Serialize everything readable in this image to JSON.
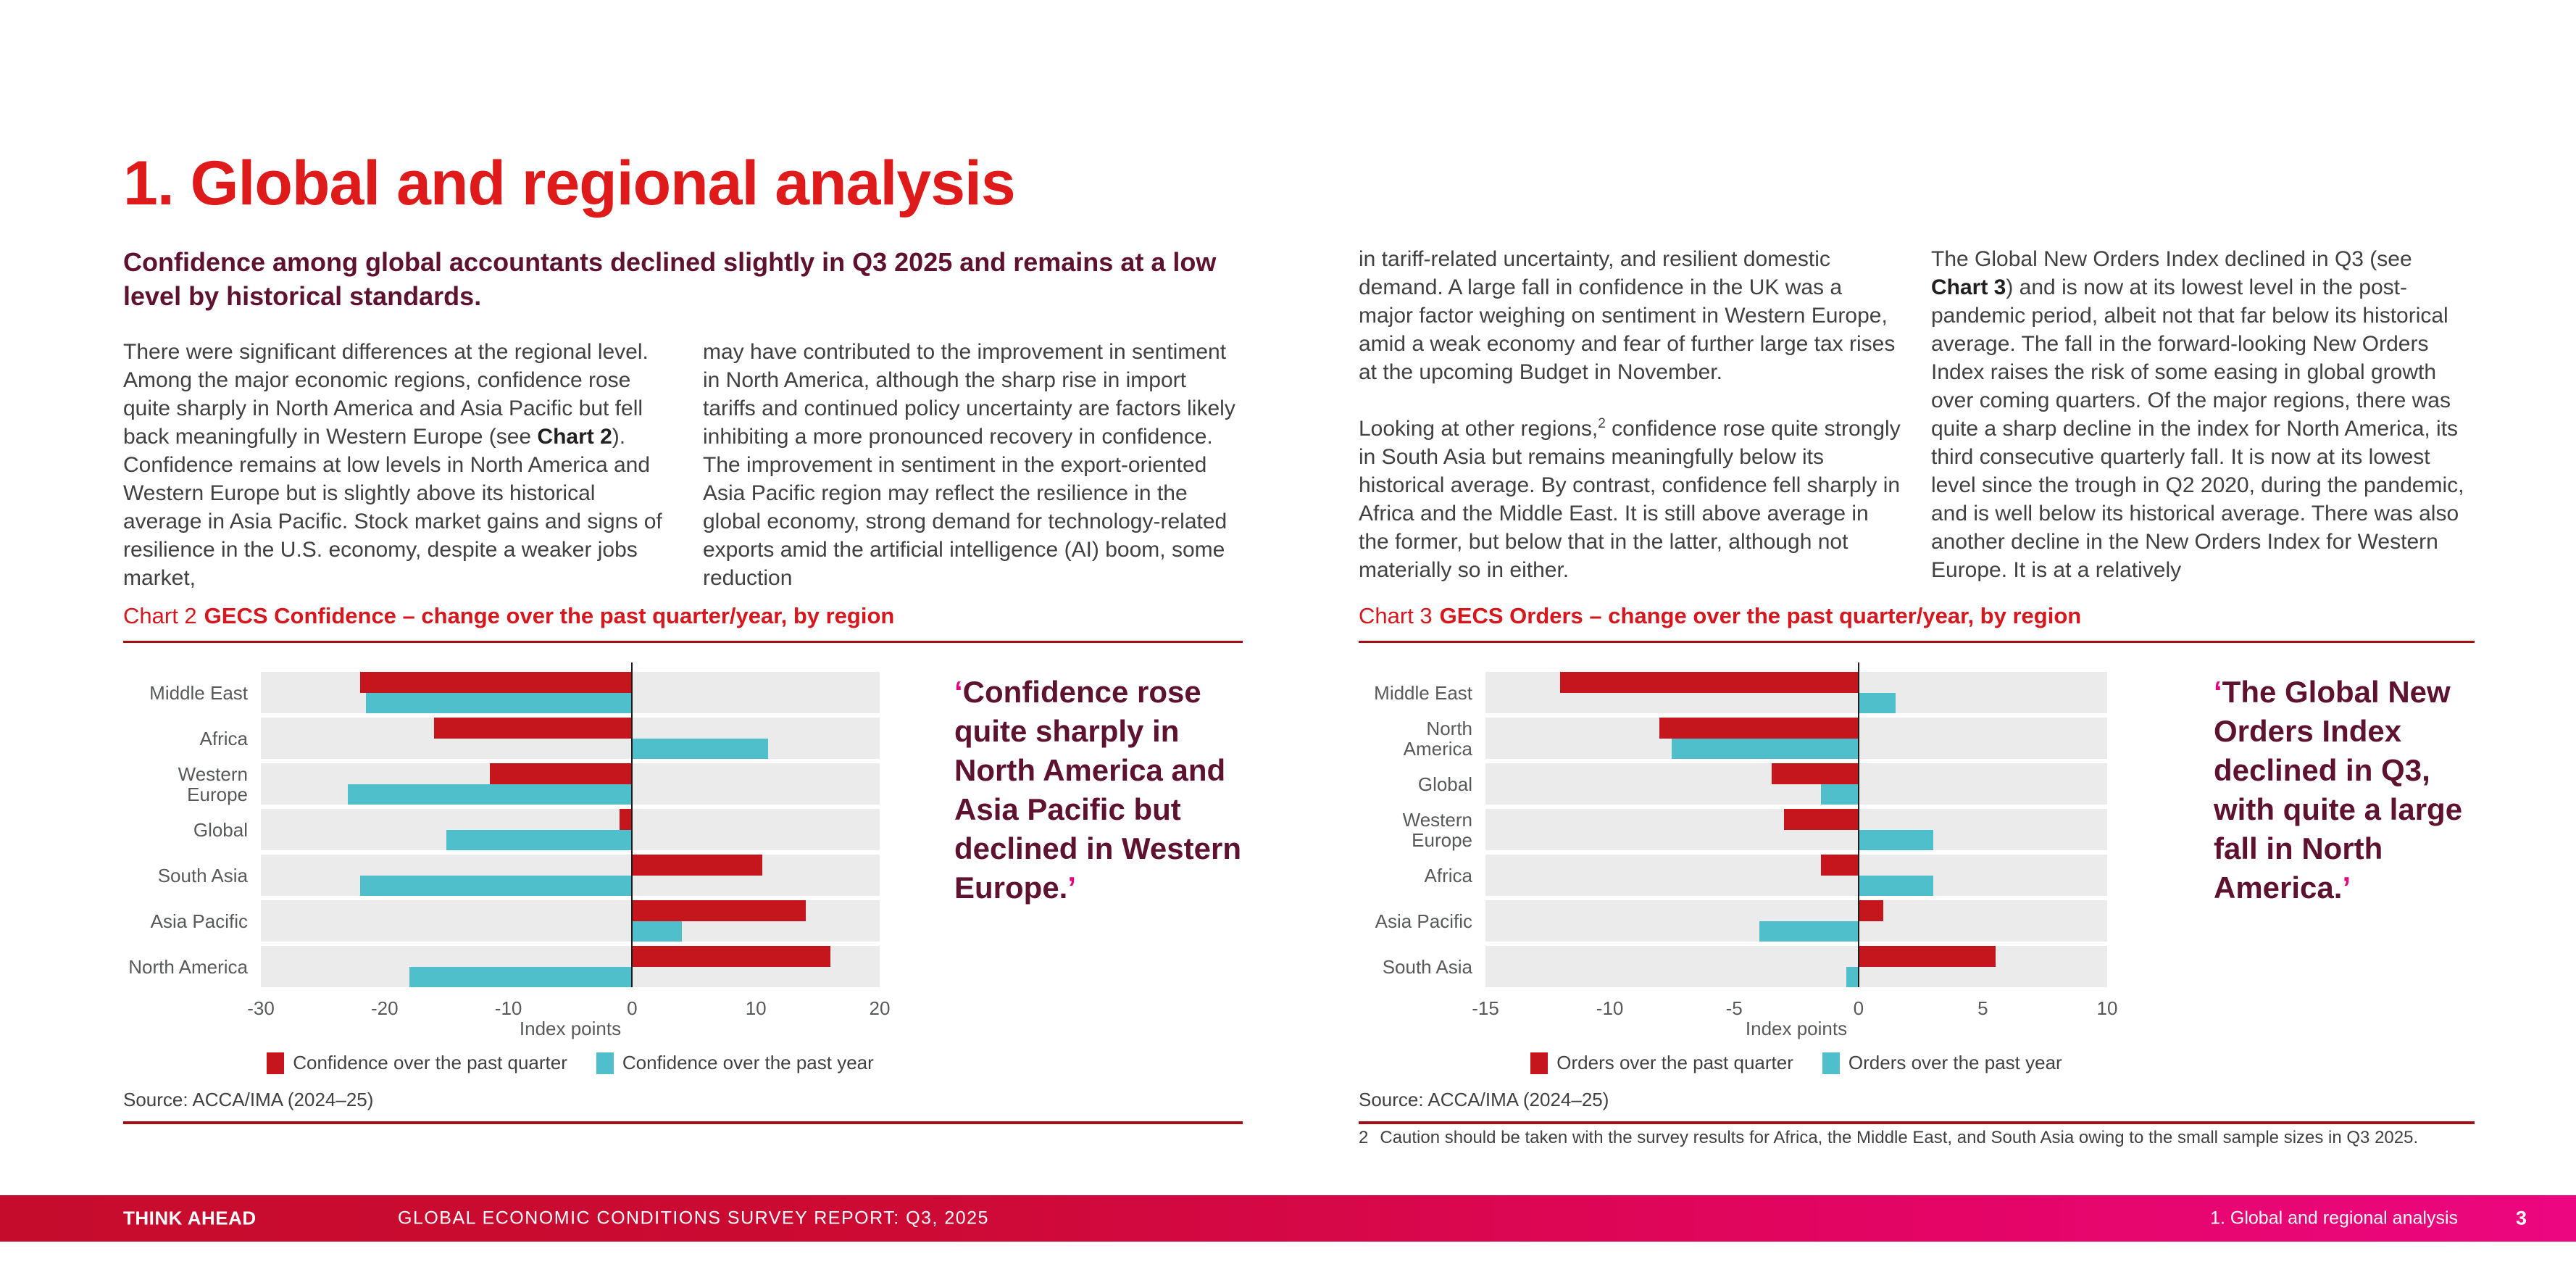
{
  "page": {
    "title": "1. Global and regional analysis",
    "intro": "Confidence among global accountants declined slightly in Q3 2025 and remains at a low level by historical standards."
  },
  "article": {
    "columns": [
      [
        [
          {
            "t": "There were significant differences at the regional level. Among the major economic regions, confidence rose quite sharply in North America and Asia Pacific but fell back meaningfully in Western Europe (see "
          },
          {
            "t": "Chart 2",
            "s": "b"
          },
          {
            "t": "). Confidence remains at low levels in North America and Western Europe but is slightly above its historical average in Asia Pacific. Stock market gains and signs of resilience in the U.S. economy, despite a weaker jobs market,"
          }
        ]
      ],
      [
        [
          {
            "t": "may have contributed to the improvement in sentiment in North America, although the sharp rise in import tariffs and continued policy uncertainty are factors likely inhibiting a more pronounced recovery in confidence. The improvement in sentiment in the export-oriented Asia Pacific region may reflect the resilience in the global economy, strong demand for technology-related exports amid the artificial intelligence (AI) boom, some reduction"
          }
        ]
      ],
      [
        [
          {
            "t": "in tariff-related uncertainty, and resilient domestic demand. A large fall in confidence in the UK was a major factor weighing on sentiment in Western Europe, amid a weak economy and fear of further large tax rises at the upcoming Budget in November."
          }
        ],
        [
          {
            "t": "Looking at other regions,"
          },
          {
            "t": "2",
            "s": "sup"
          },
          {
            "t": " confidence rose quite strongly in South Asia but remains meaningfully below its historical average. By contrast, confidence fell sharply in Africa and the Middle East. It is still above average in the former, but below that in the latter, although not materially so in either."
          }
        ]
      ],
      [
        [
          {
            "t": "The Global New Orders Index declined in Q3 (see "
          },
          {
            "t": "Chart 3",
            "s": "b"
          },
          {
            "t": ") and is now at its lowest level in the post-pandemic period, albeit not that far below its historical average. The fall in the forward-looking New Orders Index raises the risk of some easing in global growth over coming quarters. Of the major regions, there was quite a sharp decline in the index for North America, its third consecutive quarterly fall. It is now at its lowest level since the trough in Q2 2020, during the pandemic, and is well below its historical average. There was also another decline in the New Orders Index for Western Europe. It is at a relatively"
          }
        ]
      ]
    ]
  },
  "chart_data": [
    {
      "type": "bar",
      "orientation": "horizontal",
      "title_prefix": "Chart 2",
      "title": "GECS Confidence – change over the past quarter/year, by region",
      "categories": [
        "Middle East",
        "Africa",
        "Western Europe",
        "Global",
        "South Asia",
        "Asia Pacific",
        "North America"
      ],
      "series": [
        {
          "name": "Confidence over the past quarter",
          "color": "#c4161c",
          "values": [
            -22,
            -16,
            -11.5,
            -1,
            10.5,
            14,
            16
          ]
        },
        {
          "name": "Confidence over the past year",
          "color": "#4fc0cb",
          "values": [
            -21.5,
            11,
            -23,
            -15,
            -22,
            4,
            -18
          ]
        }
      ],
      "xlabel": "Index points",
      "xlim": [
        -30,
        20
      ],
      "ticks": [
        -30,
        -20,
        -10,
        0,
        10,
        20
      ],
      "grid": false,
      "legend_position": "bottom",
      "band_color": "#ebebeb",
      "source": "Source: ACCA/IMA (2024–25)",
      "quote": {
        "open": "‘",
        "text": "Confidence rose quite sharply in North America and Asia Pacific but declined in Western Europe.",
        "close": "’"
      }
    },
    {
      "type": "bar",
      "orientation": "horizontal",
      "title_prefix": "Chart 3",
      "title": "GECS Orders – change over the past quarter/year, by region",
      "categories": [
        "Middle East",
        "North America",
        "Global",
        "Western Europe",
        "Africa",
        "Asia Pacific",
        "South Asia"
      ],
      "series": [
        {
          "name": "Orders over the past quarter",
          "color": "#c4161c",
          "values": [
            -12,
            -8,
            -3.5,
            -3,
            -1.5,
            1,
            5.5
          ]
        },
        {
          "name": "Orders over the past year",
          "color": "#4fc0cb",
          "values": [
            1.5,
            -7.5,
            -1.5,
            3,
            3,
            -4,
            -0.5
          ]
        }
      ],
      "xlabel": "Index points",
      "xlim": [
        -15,
        10
      ],
      "ticks": [
        -15,
        -10,
        -5,
        0,
        5,
        10
      ],
      "grid": false,
      "legend_position": "bottom",
      "band_color": "#ebebeb",
      "source": "Source: ACCA/IMA (2024–25)",
      "quote": {
        "open": "‘",
        "text": "The Global New Orders Index declined in Q3, with quite a large fall in North America.",
        "close": "’"
      }
    }
  ],
  "footnote": {
    "number": "2",
    "text": "Caution should be taken with the survey results for Africa, the Middle East, and South Asia owing to the small sample sizes in Q3 2025."
  },
  "footer": {
    "brand": "THINK AHEAD",
    "report": "GLOBAL ECONOMIC CONDITIONS SURVEY REPORT: Q3, 2025",
    "section": "1. Global and regional analysis",
    "page": "3"
  },
  "colors": {
    "heading_red": "#de1b1a",
    "chart_title_red": "#d6181e",
    "rule_red": "#a50e13",
    "maroon": "#5e122f",
    "quote_mark_pink": "#e5007d",
    "footer_gradient_left": "#c60c2d",
    "footer_gradient_right": "#ec0680"
  }
}
